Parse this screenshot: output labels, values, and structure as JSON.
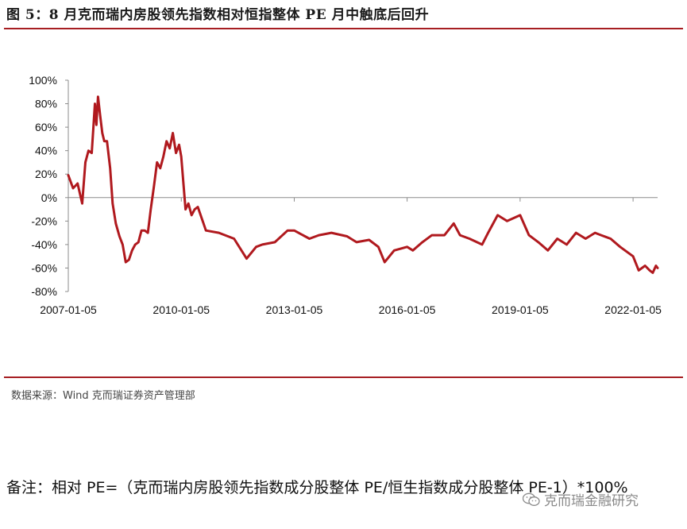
{
  "header": {
    "title": "图 5：8 月克而瑞内房股领先指数相对恒指整体 PE 月中触底后回升"
  },
  "footer": {
    "source": "数据来源：Wind  克而瑞证券资产管理部",
    "note": "备注：相对 PE=（克而瑞内房股领先指数成分股整体 PE/恒生指数成分股整体 PE-1）*100%",
    "watermark": "克而瑞金融研究"
  },
  "colors": {
    "line": "#b0191e",
    "rule": "#a61e22",
    "axis": "#8c8c8c"
  },
  "chart_data": {
    "type": "line",
    "title": "",
    "xlabel": "",
    "ylabel": "",
    "ylim": [
      -80,
      100
    ],
    "yticks": [
      -80,
      -60,
      -40,
      -20,
      0,
      20,
      40,
      60,
      80,
      100
    ],
    "ytick_labels": [
      "-80%",
      "-60%",
      "-40%",
      "-20%",
      "0%",
      "20%",
      "40%",
      "60%",
      "80%",
      "100%"
    ],
    "xlim": [
      "2007-01-05",
      "2022-08-31"
    ],
    "xticks": [
      "2007-01-05",
      "2010-01-05",
      "2013-01-05",
      "2016-01-05",
      "2019-01-05",
      "2022-01-05"
    ],
    "grid": false,
    "legend": "none",
    "series": [
      {
        "name": "",
        "x": [
          "2007-01-05",
          "2007-02-20",
          "2007-04-05",
          "2007-05-20",
          "2007-06-20",
          "2007-07-20",
          "2007-08-20",
          "2007-09-20",
          "2007-10-05",
          "2007-10-20",
          "2007-11-10",
          "2007-12-01",
          "2007-12-20",
          "2008-01-15",
          "2008-02-15",
          "2008-03-10",
          "2008-04-10",
          "2008-05-15",
          "2008-06-15",
          "2008-07-15",
          "2008-08-15",
          "2008-09-15",
          "2008-10-15",
          "2008-11-15",
          "2008-12-15",
          "2009-01-15",
          "2009-02-15",
          "2009-03-15",
          "2009-04-15",
          "2009-05-15",
          "2009-06-15",
          "2009-07-15",
          "2009-08-15",
          "2009-09-15",
          "2009-10-15",
          "2009-11-15",
          "2009-12-15",
          "2010-01-05",
          "2010-02-15",
          "2010-03-15",
          "2010-04-15",
          "2010-05-15",
          "2010-06-15",
          "2010-09-01",
          "2011-01-05",
          "2011-06-01",
          "2011-10-01",
          "2012-01-01",
          "2012-03-01",
          "2012-07-01",
          "2012-11-01",
          "2013-01-05",
          "2013-06-01",
          "2013-09-01",
          "2014-01-01",
          "2014-06-01",
          "2014-09-01",
          "2015-01-01",
          "2015-04-01",
          "2015-06-01",
          "2015-09-01",
          "2016-01-05",
          "2016-03-01",
          "2016-06-01",
          "2016-09-01",
          "2017-01-01",
          "2017-04-01",
          "2017-06-01",
          "2017-09-01",
          "2018-01-01",
          "2018-03-01",
          "2018-06-01",
          "2018-09-01",
          "2019-01-05",
          "2019-04-01",
          "2019-07-01",
          "2019-10-01",
          "2020-01-01",
          "2020-04-01",
          "2020-07-01",
          "2020-10-01",
          "2021-01-01",
          "2021-03-01",
          "2021-06-01",
          "2021-09-01",
          "2022-01-05",
          "2022-03-01",
          "2022-05-01",
          "2022-06-15",
          "2022-07-15",
          "2022-08-15",
          "2022-08-31"
        ],
        "values": [
          19,
          8,
          12,
          -5,
          30,
          40,
          38,
          80,
          62,
          86,
          70,
          55,
          48,
          48,
          25,
          -5,
          -22,
          -33,
          -40,
          -55,
          -53,
          -45,
          -40,
          -38,
          -28,
          -28,
          -30,
          -10,
          10,
          30,
          25,
          35,
          48,
          42,
          55,
          38,
          45,
          35,
          -10,
          -5,
          -15,
          -10,
          -8,
          -28,
          -30,
          -35,
          -52,
          -42,
          -40,
          -38,
          -28,
          -28,
          -35,
          -32,
          -30,
          -33,
          -38,
          -36,
          -42,
          -55,
          -45,
          -42,
          -45,
          -38,
          -32,
          -32,
          -22,
          -32,
          -35,
          -40,
          -30,
          -15,
          -20,
          -15,
          -32,
          -38,
          -45,
          -35,
          -40,
          -30,
          -35,
          -30,
          -32,
          -35,
          -42,
          -50,
          -62,
          -58,
          -62,
          -64,
          -58,
          -60
        ]
      }
    ]
  }
}
